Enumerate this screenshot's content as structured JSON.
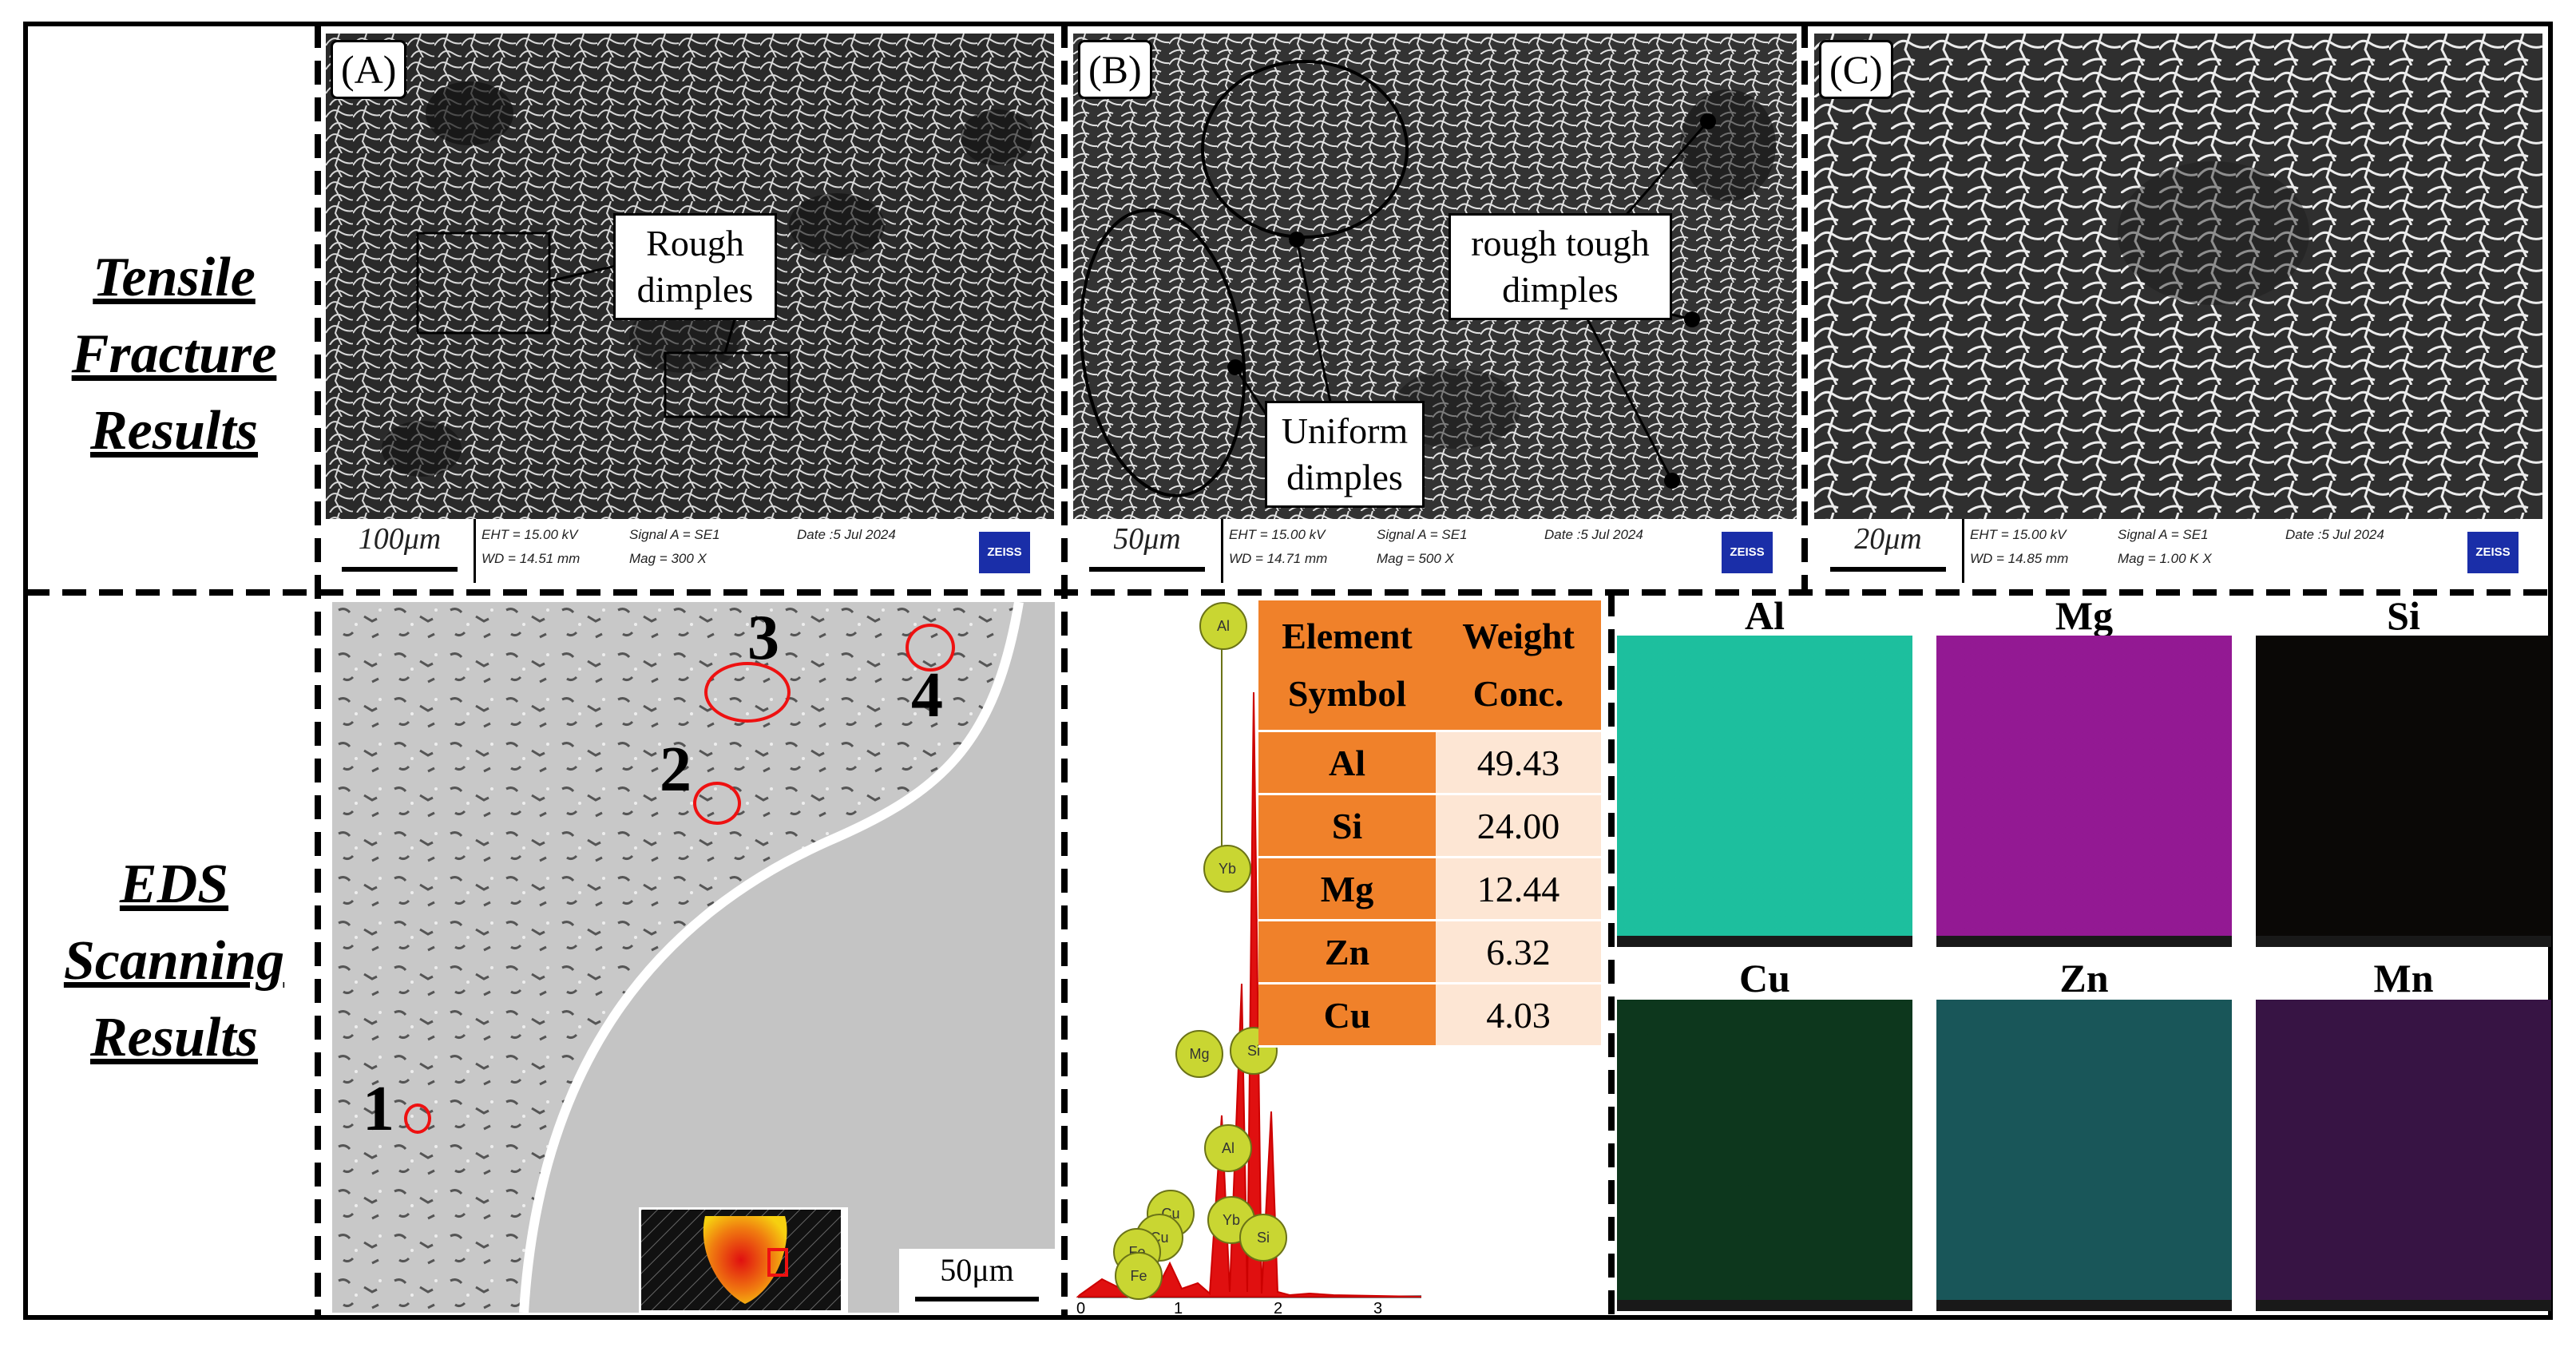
{
  "row_labels": {
    "tensile": [
      "Tensile",
      "Fracture",
      "Results"
    ],
    "eds": [
      "EDS",
      "Scanning",
      "Results"
    ]
  },
  "panels": {
    "a": {
      "letter": "(A)",
      "scale": "100μm",
      "callout": [
        "Rough",
        "dimples"
      ],
      "info": [
        "EHT = 15.00 kV",
        "WD = 14.51 mm",
        "Signal A = SE1",
        "Mag = 300 X",
        "Date :5 Jul 2024"
      ]
    },
    "b": {
      "letter": "(B)",
      "scale": "50μm",
      "callouts": [
        [
          "rough tough",
          "dimples"
        ],
        [
          "Uniform",
          "dimples"
        ]
      ],
      "info": [
        "EHT = 15.00 kV",
        "WD = 14.71 mm",
        "Signal A = SE1",
        "Mag = 500 X",
        "Date :5 Jul 2024"
      ]
    },
    "c": {
      "letter": "(C)",
      "scale": "20μm",
      "info": [
        "EHT = 15.00 kV",
        "WD = 14.85 mm",
        "Signal A = SE1",
        "Mag = 1.00 K X",
        "Date :5 Jul 2024"
      ]
    }
  },
  "logo": "ZEISS",
  "eds_image": {
    "points": [
      "1",
      "2",
      "3",
      "4"
    ],
    "scale": "50μm"
  },
  "spectrum": {
    "x_ticks": [
      "0",
      "1",
      "2",
      "3"
    ],
    "peaks": [
      "Al",
      "Yb",
      "Mg",
      "Si",
      "Al",
      "Yb",
      "Si",
      "Cu",
      "Cu",
      "Fe",
      "Fe"
    ]
  },
  "composition_table": {
    "headers": [
      [
        "Element",
        "Symbol"
      ],
      [
        "Weight",
        "Conc."
      ]
    ],
    "rows": [
      {
        "element": "Al",
        "value": "49.43"
      },
      {
        "element": "Si",
        "value": "24.00"
      },
      {
        "element": "Mg",
        "value": "12.44"
      },
      {
        "element": "Zn",
        "value": "6.32"
      },
      {
        "element": "Cu",
        "value": "4.03"
      }
    ]
  },
  "maps": [
    {
      "label": "Al",
      "color": "#1fc9a6"
    },
    {
      "label": "Mg",
      "color": "#9b1a9b"
    },
    {
      "label": "Si",
      "color": "#0a0806"
    },
    {
      "label": "Cu",
      "color": "#0e3a1e"
    },
    {
      "label": "Zn",
      "color": "#1a5a5e"
    },
    {
      "label": "Mn",
      "color": "#3a1548"
    }
  ],
  "colors": {
    "frame": "#000000",
    "table_orange": "#f0812a",
    "table_peach": "#fde6d4",
    "circle_red": "#ee1111",
    "spectrum_red": "#e01010"
  }
}
